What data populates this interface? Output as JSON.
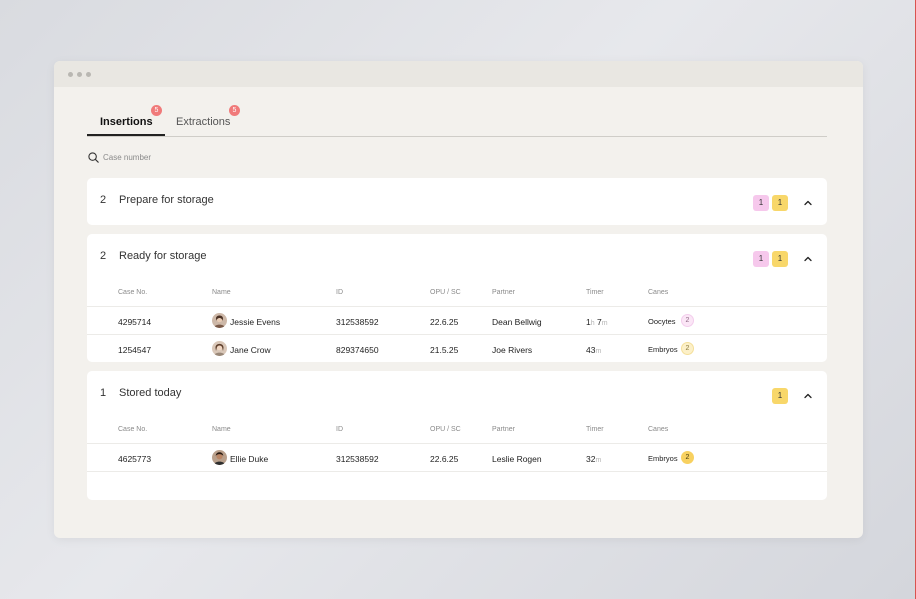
{
  "tabs": [
    {
      "label": "Insertions",
      "badge": "5",
      "active": true
    },
    {
      "label": "Extractions",
      "badge": "5",
      "active": false
    }
  ],
  "search": {
    "placeholder": "Case number"
  },
  "columns": [
    "Case No.",
    "Name",
    "ID",
    "OPU / SC",
    "Partner",
    "Timer",
    "Canes"
  ],
  "sections": [
    {
      "count": "2",
      "title": "Prepare for storage",
      "badges": [
        {
          "value": "1",
          "color": "#f6c8ec"
        },
        {
          "value": "1",
          "color": "#f8d76a"
        }
      ],
      "rows": []
    },
    {
      "count": "2",
      "title": "Ready for storage",
      "badges": [
        {
          "value": "1",
          "color": "#f6c8ec"
        },
        {
          "value": "1",
          "color": "#f8d76a"
        }
      ],
      "rows": [
        {
          "case": "4295714",
          "name": "Jessie Evens",
          "id": "312538592",
          "opu": "22.6.25",
          "partner": "Dean Bellwig",
          "timer_h": "1",
          "timer_h_unit": "h",
          "timer_m": "7",
          "timer_m_unit": "m",
          "canes_label": "Oocytes",
          "canes_count": "2"
        },
        {
          "case": "1254547",
          "name": "Jane Crow",
          "id": "829374650",
          "opu": "21.5.25",
          "partner": "Joe Rivers",
          "timer_m": "43",
          "timer_m_unit": "m",
          "canes_label": "Embryos",
          "canes_count": "2"
        }
      ]
    },
    {
      "count": "1",
      "title": "Stored today",
      "badges": [
        {
          "value": "1",
          "color": "#f8d76a"
        }
      ],
      "rows": [
        {
          "case": "4625773",
          "name": "Ellie Duke",
          "id": "312538592",
          "opu": "22.6.25",
          "partner": "Leslie Rogen",
          "timer_m": "32",
          "timer_m_unit": "m",
          "canes_label": "Embryos",
          "canes_count": "2"
        }
      ]
    }
  ]
}
